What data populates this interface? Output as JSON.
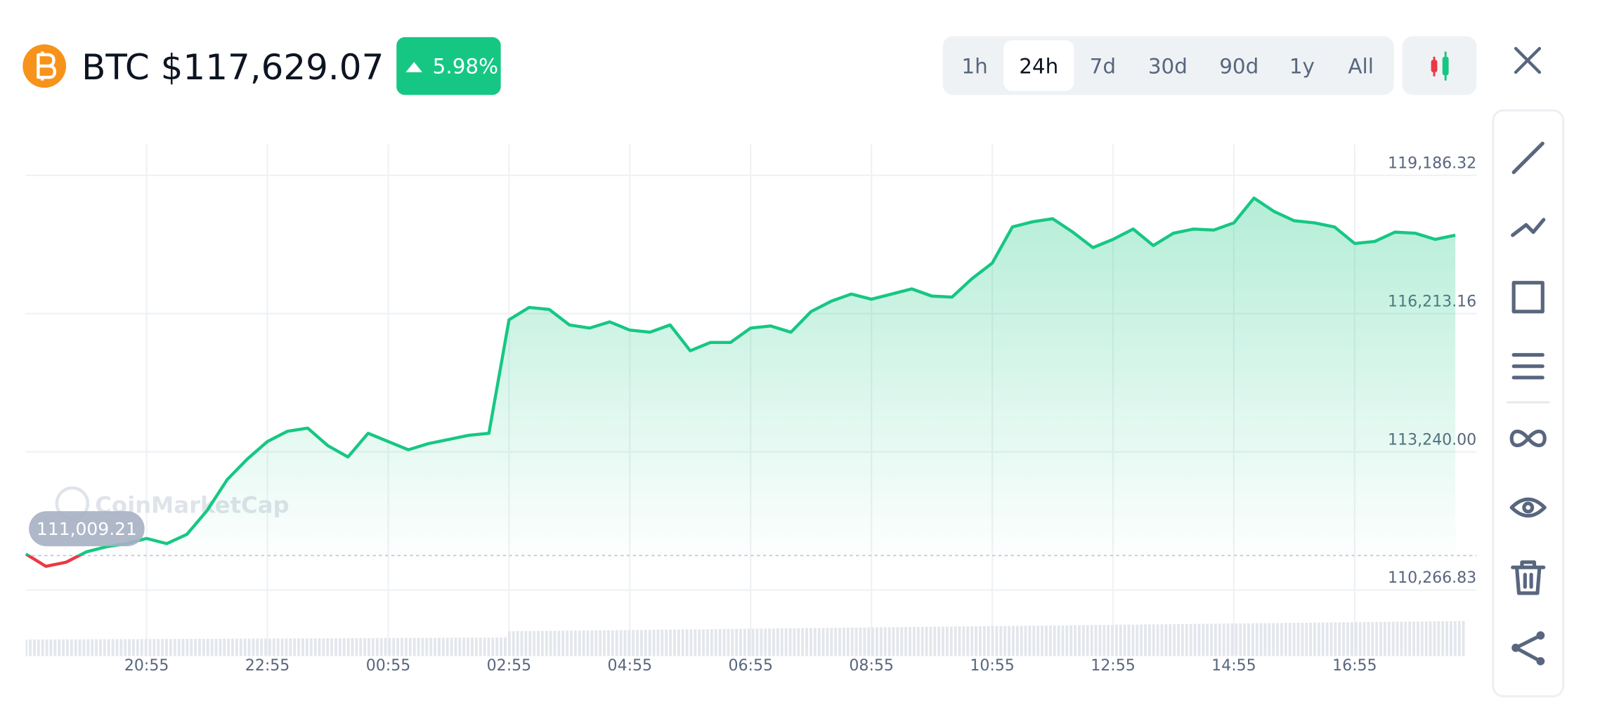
{
  "header": {
    "title": "BTC $117,629.07",
    "change": "5.98%"
  },
  "tabs": [
    "1h",
    "24h",
    "7d",
    "30d",
    "90d",
    "1y",
    "All"
  ],
  "selected_tab_index": 1,
  "watermark": "CoinMarketCap",
  "chart_data": {
    "type": "line",
    "categories": [
      null,
      null,
      null,
      null,
      null,
      null,
      "20:55",
      null,
      null,
      null,
      null,
      null,
      "22:55",
      null,
      null,
      null,
      null,
      null,
      "00:55",
      null,
      null,
      null,
      null,
      null,
      "02:55",
      null,
      null,
      null,
      null,
      null,
      "04:55",
      null,
      null,
      null,
      null,
      null,
      "06:55",
      null,
      null,
      null,
      null,
      null,
      "08:55",
      null,
      null,
      null,
      null,
      null,
      "10:55",
      null,
      null,
      null,
      null,
      null,
      "12:55",
      null,
      null,
      null,
      null,
      null,
      "14:55",
      null,
      null,
      null,
      null,
      null,
      "16:55",
      null,
      null,
      null,
      null,
      null
    ],
    "series": [
      {
        "color": "#16c784",
        "values": [
          111043,
          110777,
          110865,
          111087,
          111198,
          111265,
          111376,
          111265,
          111465,
          111975,
          112641,
          113084,
          113462,
          113683,
          113750,
          113373,
          113129,
          113639,
          113462,
          113284,
          113417,
          113506,
          113595,
          113639,
          116080,
          116346,
          116302,
          115969,
          115902,
          116035,
          115858,
          115813,
          115969,
          115414,
          115592,
          115592,
          115902,
          115947,
          115813,
          116257,
          116479,
          116634,
          116523,
          116634,
          116745,
          116590,
          116568,
          116967,
          117300,
          118077,
          118188,
          118254,
          117966,
          117633,
          117810,
          118032,
          117677,
          117943,
          118032,
          118010,
          118165,
          118698,
          118409,
          118210,
          118165,
          118077,
          117722,
          117766,
          117966,
          117943,
          117810,
          117899
        ]
      }
    ],
    "below_color": "#ea3943",
    "reference_line": {
      "value": 111009.21,
      "label": "111,009.21"
    },
    "ylim": [
      110089,
      119852
    ],
    "yticks": [
      {
        "value": 110266.83,
        "label": "110,266.83"
      },
      {
        "value": 113240.0,
        "label": "113,240.00"
      },
      {
        "value": 116213.16,
        "label": "116,213.16"
      },
      {
        "value": 119186.32,
        "label": "119,186.32"
      }
    ],
    "grid": true
  }
}
